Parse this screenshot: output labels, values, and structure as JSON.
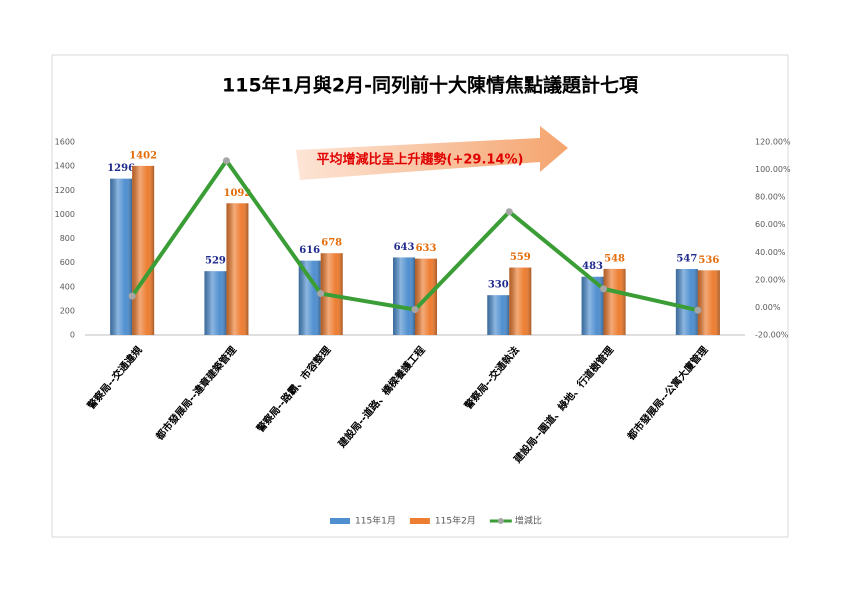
{
  "chart_data": {
    "type": "bar",
    "title": "115年1月與2月-同列前十大陳情焦點議題計七項",
    "annotation": "平均增減比呈上升趨勢(+29.14%)",
    "categories": [
      "警察局--交通違規",
      "都市發展局--違章建築管理",
      "警察局--路霸、市容整理",
      "建設局--道路、橋樑養護工程",
      "警察局--交通執法",
      "建設局--園道、綠地、行道樹管理",
      "都市發展局--公寓大廈管理"
    ],
    "series": [
      {
        "name": "115年1月",
        "color": "#4f8fd0",
        "label_color": "#1f2a8c",
        "values": [
          1296,
          529,
          616,
          643,
          330,
          483,
          547
        ]
      },
      {
        "name": "115年2月",
        "color": "#ed7d31",
        "label_color": "#e46c0a",
        "values": [
          1402,
          1092,
          678,
          633,
          559,
          548,
          536
        ]
      },
      {
        "name": "增減比",
        "type": "line",
        "axis": "y2",
        "color": "#3a9d35",
        "marker_color": "#a6a6a6",
        "values": [
          8.18,
          106.43,
          10.06,
          -1.56,
          69.39,
          13.46,
          -2.01
        ]
      }
    ],
    "ylim": [
      0,
      1600
    ],
    "yticks": [
      0,
      200,
      400,
      600,
      800,
      1000,
      1200,
      1400,
      1600
    ],
    "y2lim": [
      -20,
      120
    ],
    "y2ticks": [
      {
        "value": -20,
        "label": "-20.00%"
      },
      {
        "value": 0,
        "label": "0.00%"
      },
      {
        "value": 20,
        "label": "20.00%"
      },
      {
        "value": 40,
        "label": "40.00%"
      },
      {
        "value": 60,
        "label": "60.00%"
      },
      {
        "value": 80,
        "label": "80.00%"
      },
      {
        "value": 100,
        "label": "100.00%"
      },
      {
        "value": 120,
        "label": "120.00%"
      }
    ],
    "grid": false,
    "legend": "bottom"
  }
}
